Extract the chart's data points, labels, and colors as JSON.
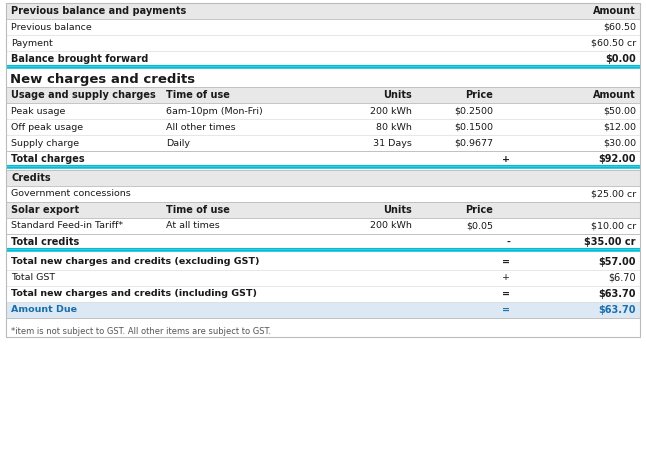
{
  "bg_color": "#ffffff",
  "cyan": "#00bcd4",
  "hdr_bg": "#e8e8e8",
  "amt_due_bg": "#dce9f5",
  "white": "#ffffff",
  "text_dark": "#1a1a1a",
  "text_blue": "#1a6faa",
  "footnote": "*item is not subject to GST. All other items are subject to GST.",
  "section_title": "New charges and credits",
  "usage_header": [
    "Usage and supply charges",
    "Time of use",
    "Units",
    "Price",
    "Amount"
  ],
  "usage_rows": [
    [
      "Peak usage",
      "6am-10pm (Mon-Fri)",
      "200 kWh",
      "$0.2500",
      "$50.00"
    ],
    [
      "Off peak usage",
      "All other times",
      "80 kWh",
      "$0.1500",
      "$12.00"
    ],
    [
      "Supply charge",
      "Daily",
      "31 Days",
      "$0.9677",
      "$30.00"
    ]
  ],
  "total_charges_symbol": "+",
  "total_charges_label": "Total charges",
  "total_charges_value": "$92.00",
  "credits_header": "Credits",
  "govt_concessions_label": "Government concessions",
  "govt_concessions_value": "$25.00 cr",
  "solar_header": [
    "Solar export",
    "Time of use",
    "Units",
    "Price",
    ""
  ],
  "solar_rows": [
    [
      "Standard Feed-in Tariff*",
      "At all times",
      "200 kWh",
      "$0.05",
      "$10.00 cr"
    ]
  ],
  "total_credits_symbol": "-",
  "total_credits_label": "Total credits",
  "total_credits_value": "$35.00 cr",
  "summary_rows": [
    {
      "label": "Total new charges and credits (excluding GST)",
      "symbol": "=",
      "value": "$57.00",
      "bold": true,
      "blue": false
    },
    {
      "label": "Total GST",
      "symbol": "+",
      "value": "$6.70",
      "bold": false,
      "blue": false
    },
    {
      "label": "Total new charges and credits (including GST)",
      "symbol": "=",
      "value": "$63.70",
      "bold": true,
      "blue": false
    },
    {
      "label": "Amount Due",
      "symbol": "=",
      "value": "$63.70",
      "bold": true,
      "blue": true
    }
  ],
  "prev_header_label": "Previous balance and payments",
  "prev_header_amount": "Amount",
  "prev_rows": [
    {
      "label": "Previous balance",
      "value": "$60.50"
    },
    {
      "label": "Payment",
      "value": "$60.50 cr"
    }
  ],
  "balance_fwd_label": "Balance brought forward",
  "balance_fwd_value": "$0.00"
}
